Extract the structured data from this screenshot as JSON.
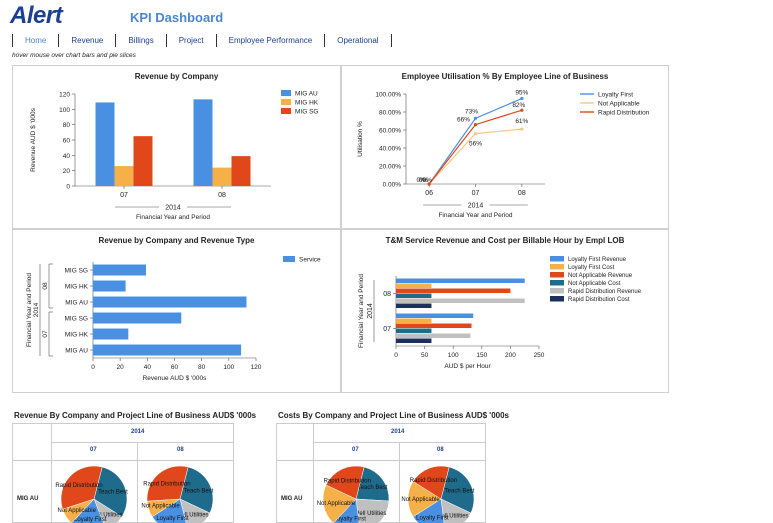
{
  "header": {
    "logo": "Alert",
    "title": "KPI Dashboard"
  },
  "nav": [
    {
      "label": "Home",
      "active": true
    },
    {
      "label": "Revenue",
      "active": false
    },
    {
      "label": "Billings",
      "active": false
    },
    {
      "label": "Project",
      "active": false
    },
    {
      "label": "Employee Performance",
      "active": false
    },
    {
      "label": "Operational",
      "active": false
    }
  ],
  "hint": "hover mouse over chart bars and pie slices",
  "colors": {
    "blue": "#4a90e2",
    "orange": "#f5b04a",
    "red": "#e0481c",
    "teal": "#1f6b8c",
    "gray": "#c0c0c0",
    "navy": "#1c2f5e"
  },
  "chart_data": [
    {
      "id": "rev_company",
      "type": "bar",
      "title": "Revenue by Company",
      "xlabel": "Financial Year and Period",
      "ylabel": "Revenue AUD $ '000s",
      "group_label": "2014",
      "categories": [
        "07",
        "08"
      ],
      "ylim": [
        0,
        120
      ],
      "yticks": [
        0,
        20,
        40,
        60,
        80,
        100,
        120
      ],
      "series": [
        {
          "name": "MIG AU",
          "color": "#4a90e2",
          "values": [
            109,
            113
          ]
        },
        {
          "name": "MIG HK",
          "color": "#f5b04a",
          "values": [
            26,
            24
          ]
        },
        {
          "name": "MIG SG",
          "color": "#e0481c",
          "values": [
            65,
            39
          ]
        }
      ]
    },
    {
      "id": "emp_util",
      "type": "line",
      "title": "Employee Utilisation % By Employee Line of Business",
      "xlabel": "Financial Year and Period",
      "ylabel": "Utilisation %",
      "group_label": "2014",
      "categories": [
        "06",
        "07",
        "08"
      ],
      "ylim": [
        0,
        100
      ],
      "yticks": [
        "0.00%",
        "20.00%",
        "40.00%",
        "60.00%",
        "80.00%",
        "100.00%"
      ],
      "series": [
        {
          "name": "Loyalty First",
          "color": "#4a90e2",
          "values": [
            0,
            73,
            95
          ],
          "labels": [
            "0%",
            "73%",
            "95%"
          ]
        },
        {
          "name": "Not Applicable",
          "color": "#f5c88a",
          "values": [
            0,
            56,
            61
          ],
          "labels": [
            "0%",
            "56%",
            "61%"
          ]
        },
        {
          "name": "Rapid Distribution",
          "color": "#e0481c",
          "values": [
            0,
            66,
            82
          ],
          "labels": [
            "0%",
            "66%",
            "82%"
          ]
        }
      ]
    },
    {
      "id": "rev_type",
      "type": "bar",
      "orientation": "horizontal",
      "title": "Revenue by Company and Revenue Type",
      "xlabel": "Revenue AUD $ '000s",
      "ylabel": "Financial Year and Period",
      "group_label": "2014",
      "period_labels": [
        "08",
        "07"
      ],
      "categories": [
        "MIG SG",
        "MIG HK",
        "MIG AU",
        "MIG SG",
        "MIG HK",
        "MIG AU"
      ],
      "xlim": [
        0,
        120
      ],
      "xticks": [
        0,
        20,
        40,
        60,
        80,
        100,
        120
      ],
      "series": [
        {
          "name": "Service",
          "color": "#4a90e2",
          "values": [
            39,
            24,
            113,
            65,
            26,
            109
          ]
        }
      ]
    },
    {
      "id": "tm_service",
      "type": "bar",
      "orientation": "horizontal",
      "title": "T&M Service Revenue and Cost per Billable Hour by Empl LOB",
      "xlabel": "AUD $ per Hour",
      "ylabel": "Financial Year and Period",
      "group_label": "2014",
      "categories": [
        "08",
        "07"
      ],
      "xlim": [
        0,
        250
      ],
      "xticks": [
        0,
        50,
        100,
        150,
        200,
        250
      ],
      "series": [
        {
          "name": "Loyalty First Revenue",
          "color": "#4a90e2",
          "values": [
            225,
            135
          ]
        },
        {
          "name": "Loyalty First Cost",
          "color": "#f5b04a",
          "values": [
            62,
            62
          ]
        },
        {
          "name": "Not Applicable Revenue",
          "color": "#e0481c",
          "values": [
            200,
            132
          ]
        },
        {
          "name": "Not Applicable Cost",
          "color": "#1f6b8c",
          "values": [
            62,
            62
          ]
        },
        {
          "name": "Rapid Distribution Revenue",
          "color": "#c0c0c0",
          "values": [
            225,
            130
          ]
        },
        {
          "name": "Rapid Distribution Cost",
          "color": "#1c2f5e",
          "values": [
            62,
            62
          ]
        }
      ]
    },
    {
      "id": "rev_pie",
      "type": "pie",
      "title": "Revenue By Company and Project Line of Business AUD$ '000s",
      "year": "2014",
      "periods": [
        "07",
        "08"
      ],
      "row_label": "MIG AU",
      "pies": [
        {
          "period": "07",
          "slices": [
            {
              "label": "Teach Best",
              "value": 30,
              "color": "#1f6b8c"
            },
            {
              "label": "Pell Utilities",
              "value": 10,
              "color": "#c0c0c0"
            },
            {
              "label": "Loyalty First",
              "value": 18,
              "color": "#4a90e2"
            },
            {
              "label": "Not Applicable",
              "value": 8,
              "color": "#f5b04a"
            },
            {
              "label": "Rapid Distribution",
              "value": 34,
              "color": "#e0481c"
            }
          ]
        },
        {
          "period": "08",
          "slices": [
            {
              "label": "Teach Best",
              "value": 28,
              "color": "#1f6b8c"
            },
            {
              "label": "Pell Utilities",
              "value": 14,
              "color": "#c0c0c0"
            },
            {
              "label": "Loyalty First",
              "value": 20,
              "color": "#4a90e2"
            },
            {
              "label": "Not Applicable",
              "value": 8,
              "color": "#f5b04a"
            },
            {
              "label": "Rapid Distribution",
              "value": 30,
              "color": "#e0481c"
            }
          ]
        }
      ]
    },
    {
      "id": "cost_pie",
      "type": "pie",
      "title": "Costs By Company and Project Line of Business AUD$ '000s",
      "year": "2014",
      "periods": [
        "07",
        "08"
      ],
      "row_label": "MIG AU",
      "pies": [
        {
          "period": "07",
          "slices": [
            {
              "label": "Teach Best",
              "value": 22,
              "color": "#1f6b8c"
            },
            {
              "label": "Pell Utilities",
              "value": 22,
              "color": "#c0c0c0"
            },
            {
              "label": "Loyalty First",
              "value": 14,
              "color": "#4a90e2"
            },
            {
              "label": "Not Applicable",
              "value": 20,
              "color": "#f5b04a"
            },
            {
              "label": "Rapid Distribution",
              "value": 22,
              "color": "#e0481c"
            }
          ]
        },
        {
          "period": "08",
          "slices": [
            {
              "label": "Teach Best",
              "value": 28,
              "color": "#1f6b8c"
            },
            {
              "label": "Pell Utilities",
              "value": 16,
              "color": "#c0c0c0"
            },
            {
              "label": "Loyalty First",
              "value": 18,
              "color": "#4a90e2"
            },
            {
              "label": "Not Applicable",
              "value": 18,
              "color": "#f5b04a"
            },
            {
              "label": "Rapid Distribution",
              "value": 20,
              "color": "#e0481c"
            }
          ]
        }
      ]
    }
  ]
}
